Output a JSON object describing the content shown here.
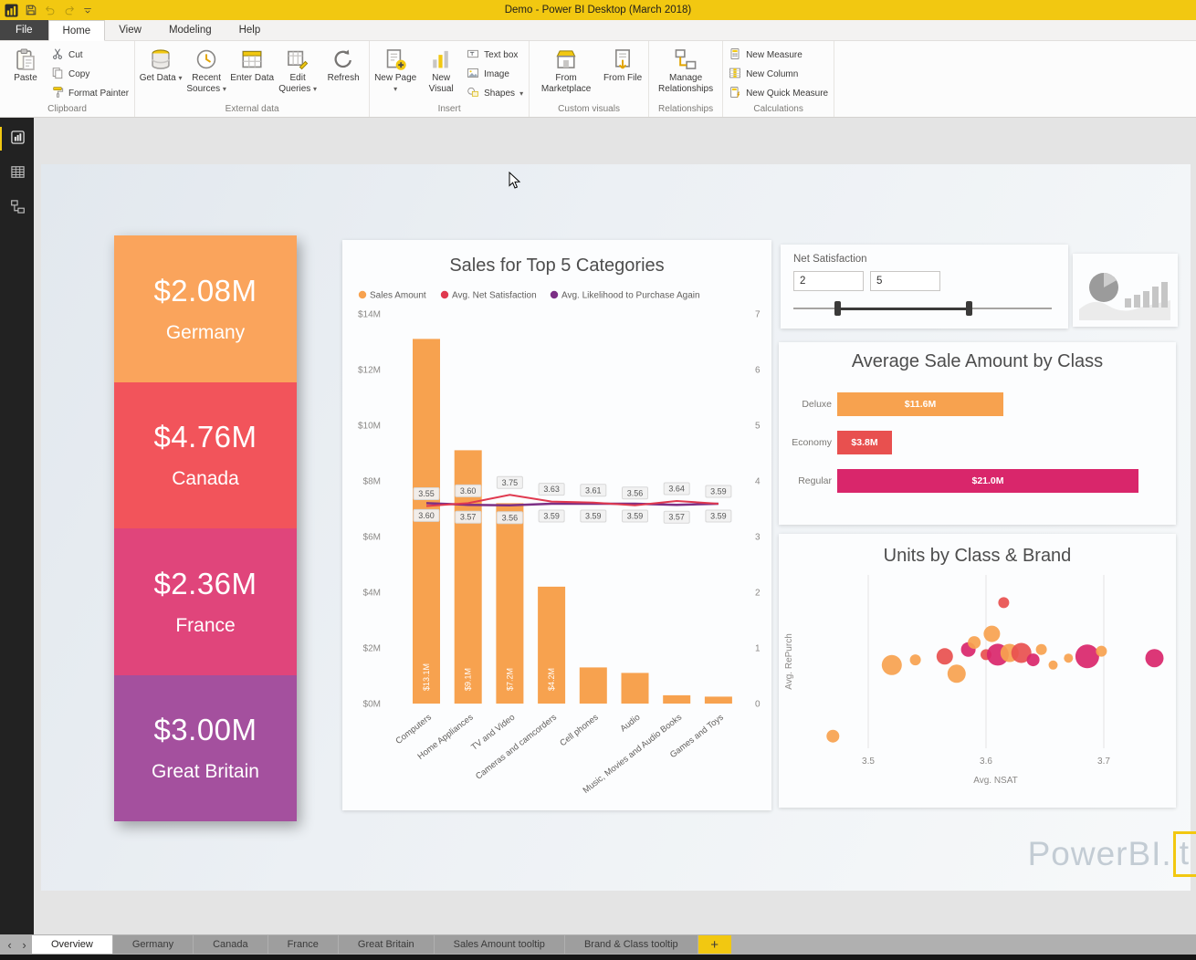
{
  "titlebar": {
    "title": "Demo - Power BI Desktop (March 2018)"
  },
  "menu_tabs": [
    {
      "label": "File",
      "style": "file"
    },
    {
      "label": "Home",
      "active": true
    },
    {
      "label": "View"
    },
    {
      "label": "Modeling"
    },
    {
      "label": "Help"
    }
  ],
  "ribbon_groups": [
    {
      "label": "Clipboard",
      "blocks": [
        {
          "type": "big",
          "items": [
            {
              "label": "Paste",
              "icon": "paste"
            }
          ]
        },
        {
          "type": "smallstack",
          "items": [
            {
              "label": "Cut",
              "icon": "cut"
            },
            {
              "label": "Copy",
              "icon": "copy"
            },
            {
              "label": "Format Painter",
              "icon": "format-painter"
            }
          ]
        }
      ]
    },
    {
      "label": "External data",
      "blocks": [
        {
          "type": "big",
          "items": [
            {
              "label": "Get Data",
              "icon": "get-data",
              "dropdown": true
            },
            {
              "label": "Recent Sources",
              "icon": "recent-sources",
              "dropdown": true
            },
            {
              "label": "Enter Data",
              "icon": "enter-data"
            },
            {
              "label": "Edit Queries",
              "icon": "edit-queries",
              "dropdown": true
            },
            {
              "label": "Refresh",
              "icon": "refresh"
            }
          ]
        }
      ]
    },
    {
      "label": "Insert",
      "blocks": [
        {
          "type": "big",
          "items": [
            {
              "label": "New Page",
              "icon": "new-page",
              "dropdown": true
            },
            {
              "label": "New Visual",
              "icon": "new-visual"
            }
          ]
        },
        {
          "type": "smallstack",
          "items": [
            {
              "label": "Text box",
              "icon": "text-box"
            },
            {
              "label": "Image",
              "icon": "image"
            },
            {
              "label": "Shapes",
              "icon": "shapes",
              "dropdown": true
            }
          ]
        }
      ]
    },
    {
      "label": "Custom visuals",
      "blocks": [
        {
          "type": "big",
          "items": [
            {
              "label": "From Marketplace",
              "icon": "from-marketplace"
            },
            {
              "label": "From File",
              "icon": "from-file"
            }
          ]
        }
      ]
    },
    {
      "label": "Relationships",
      "blocks": [
        {
          "type": "big",
          "items": [
            {
              "label": "Manage Relationships",
              "icon": "manage-relationships"
            }
          ]
        }
      ]
    },
    {
      "label": "Calculations",
      "blocks": [
        {
          "type": "smallstack",
          "items": [
            {
              "label": "New Measure",
              "icon": "new-measure"
            },
            {
              "label": "New Column",
              "icon": "new-column"
            },
            {
              "label": "New Quick Measure",
              "icon": "new-quick-measure"
            }
          ]
        }
      ]
    }
  ],
  "left_nav": [
    {
      "name": "report-view",
      "active": true
    },
    {
      "name": "data-view"
    },
    {
      "name": "model-view"
    }
  ],
  "kpi_cards": [
    {
      "value": "$2.08M",
      "label": "Germany",
      "color": "#FAA45C"
    },
    {
      "value": "$4.76M",
      "label": "Canada",
      "color": "#F2545B"
    },
    {
      "value": "$2.36M",
      "label": "France",
      "color": "#E0457B"
    },
    {
      "value": "$3.00M",
      "label": "Great Britain",
      "color": "#A4509E"
    }
  ],
  "slicer": {
    "title": "Net Satisfaction",
    "min_value": "2",
    "max_value": "5",
    "handle_positions": [
      0.17,
      0.68
    ]
  },
  "watermark": {
    "text": "PowerBI.",
    "suffix": "t"
  },
  "page_tabs": {
    "scroll_left": "‹",
    "scroll_right": "›",
    "tabs": [
      {
        "label": "Overview",
        "active": true
      },
      {
        "label": "Germany"
      },
      {
        "label": "Canada"
      },
      {
        "label": "France"
      },
      {
        "label": "Great Britain"
      },
      {
        "label": "Sales Amount tooltip"
      },
      {
        "label": "Brand & Class tooltip"
      }
    ],
    "add_label": "+"
  },
  "chart_data": [
    {
      "id": "sales_top5",
      "type": "combo",
      "title": "Sales for Top 5 Categories",
      "categories": [
        "Computers",
        "Home Appliances",
        "TV and Video",
        "Cameras and camcorders",
        "Cell phones",
        "Audio",
        "Music, Movies and Audio Books",
        "Games and Toys"
      ],
      "series": [
        {
          "name": "Sales Amount",
          "type": "bar",
          "axis": "left",
          "color": "#F7A24F",
          "values": [
            13.1,
            9.1,
            7.2,
            4.2,
            1.3,
            1.1,
            0.3,
            0.25
          ],
          "labels": [
            "$13.1M",
            "$9.1M",
            "$7.2M",
            "$4.2M",
            null,
            null,
            null,
            null
          ]
        },
        {
          "name": "Avg. Net Satisfaction",
          "type": "line",
          "axis": "right",
          "color": "#E0394F",
          "values": [
            3.55,
            3.6,
            3.75,
            3.63,
            3.61,
            3.56,
            3.64,
            3.59
          ]
        },
        {
          "name": "Avg. Likelihood to Purchase Again",
          "type": "line",
          "axis": "right",
          "color": "#7C2F85",
          "values": [
            3.6,
            3.57,
            3.56,
            3.59,
            3.59,
            3.59,
            3.57,
            3.59
          ]
        }
      ],
      "left_axis": {
        "ticks": [
          "$0M",
          "$2M",
          "$4M",
          "$6M",
          "$8M",
          "$10M",
          "$12M",
          "$14M"
        ],
        "max": 14
      },
      "right_axis": {
        "ticks": [
          "0",
          "1",
          "2",
          "3",
          "4",
          "5",
          "6",
          "7"
        ],
        "max": 7
      }
    },
    {
      "id": "avg_sale_by_class",
      "type": "bar",
      "title": "Average Sale Amount by Class",
      "categories": [
        "Deluxe",
        "Economy",
        "Regular"
      ],
      "values": [
        11.6,
        3.8,
        21.0
      ],
      "labels": [
        "$11.6M",
        "$3.8M",
        "$21.0M"
      ],
      "colors": [
        "#F7A24F",
        "#E8504F",
        "#D9266B"
      ],
      "max": 21.0
    },
    {
      "id": "units_by_class_brand",
      "type": "scatter",
      "title": "Units by Class & Brand",
      "xlabel": "Avg. NSAT",
      "ylabel": "Avg. RePurch",
      "x_ticks": [
        3.5,
        3.6,
        3.7
      ],
      "x_range": [
        3.44,
        3.76
      ],
      "y_axis_ticks": [],
      "colors": {
        "orange": "#F7A24F",
        "red": "#E8504F",
        "magenta": "#D9266B"
      },
      "points": [
        {
          "x": 3.47,
          "y": 0.93,
          "r": 7,
          "c": "orange"
        },
        {
          "x": 3.52,
          "y": 0.52,
          "r": 11,
          "c": "orange"
        },
        {
          "x": 3.54,
          "y": 0.49,
          "r": 6,
          "c": "orange"
        },
        {
          "x": 3.565,
          "y": 0.47,
          "r": 9,
          "c": "red"
        },
        {
          "x": 3.575,
          "y": 0.57,
          "r": 10,
          "c": "orange"
        },
        {
          "x": 3.585,
          "y": 0.43,
          "r": 8,
          "c": "magenta"
        },
        {
          "x": 3.59,
          "y": 0.39,
          "r": 7,
          "c": "orange"
        },
        {
          "x": 3.6,
          "y": 0.46,
          "r": 6,
          "c": "red"
        },
        {
          "x": 3.605,
          "y": 0.34,
          "r": 9,
          "c": "orange"
        },
        {
          "x": 3.61,
          "y": 0.46,
          "r": 12,
          "c": "magenta"
        },
        {
          "x": 3.615,
          "y": 0.16,
          "r": 6,
          "c": "red"
        },
        {
          "x": 3.62,
          "y": 0.45,
          "r": 10,
          "c": "orange"
        },
        {
          "x": 3.63,
          "y": 0.45,
          "r": 11,
          "c": "red"
        },
        {
          "x": 3.64,
          "y": 0.49,
          "r": 7,
          "c": "magenta"
        },
        {
          "x": 3.647,
          "y": 0.43,
          "r": 6,
          "c": "orange"
        },
        {
          "x": 3.657,
          "y": 0.52,
          "r": 5,
          "c": "orange"
        },
        {
          "x": 3.67,
          "y": 0.48,
          "r": 5,
          "c": "orange"
        },
        {
          "x": 3.686,
          "y": 0.47,
          "r": 13,
          "c": "magenta"
        },
        {
          "x": 3.698,
          "y": 0.44,
          "r": 6,
          "c": "orange"
        },
        {
          "x": 3.743,
          "y": 0.48,
          "r": 10,
          "c": "magenta"
        }
      ]
    }
  ]
}
